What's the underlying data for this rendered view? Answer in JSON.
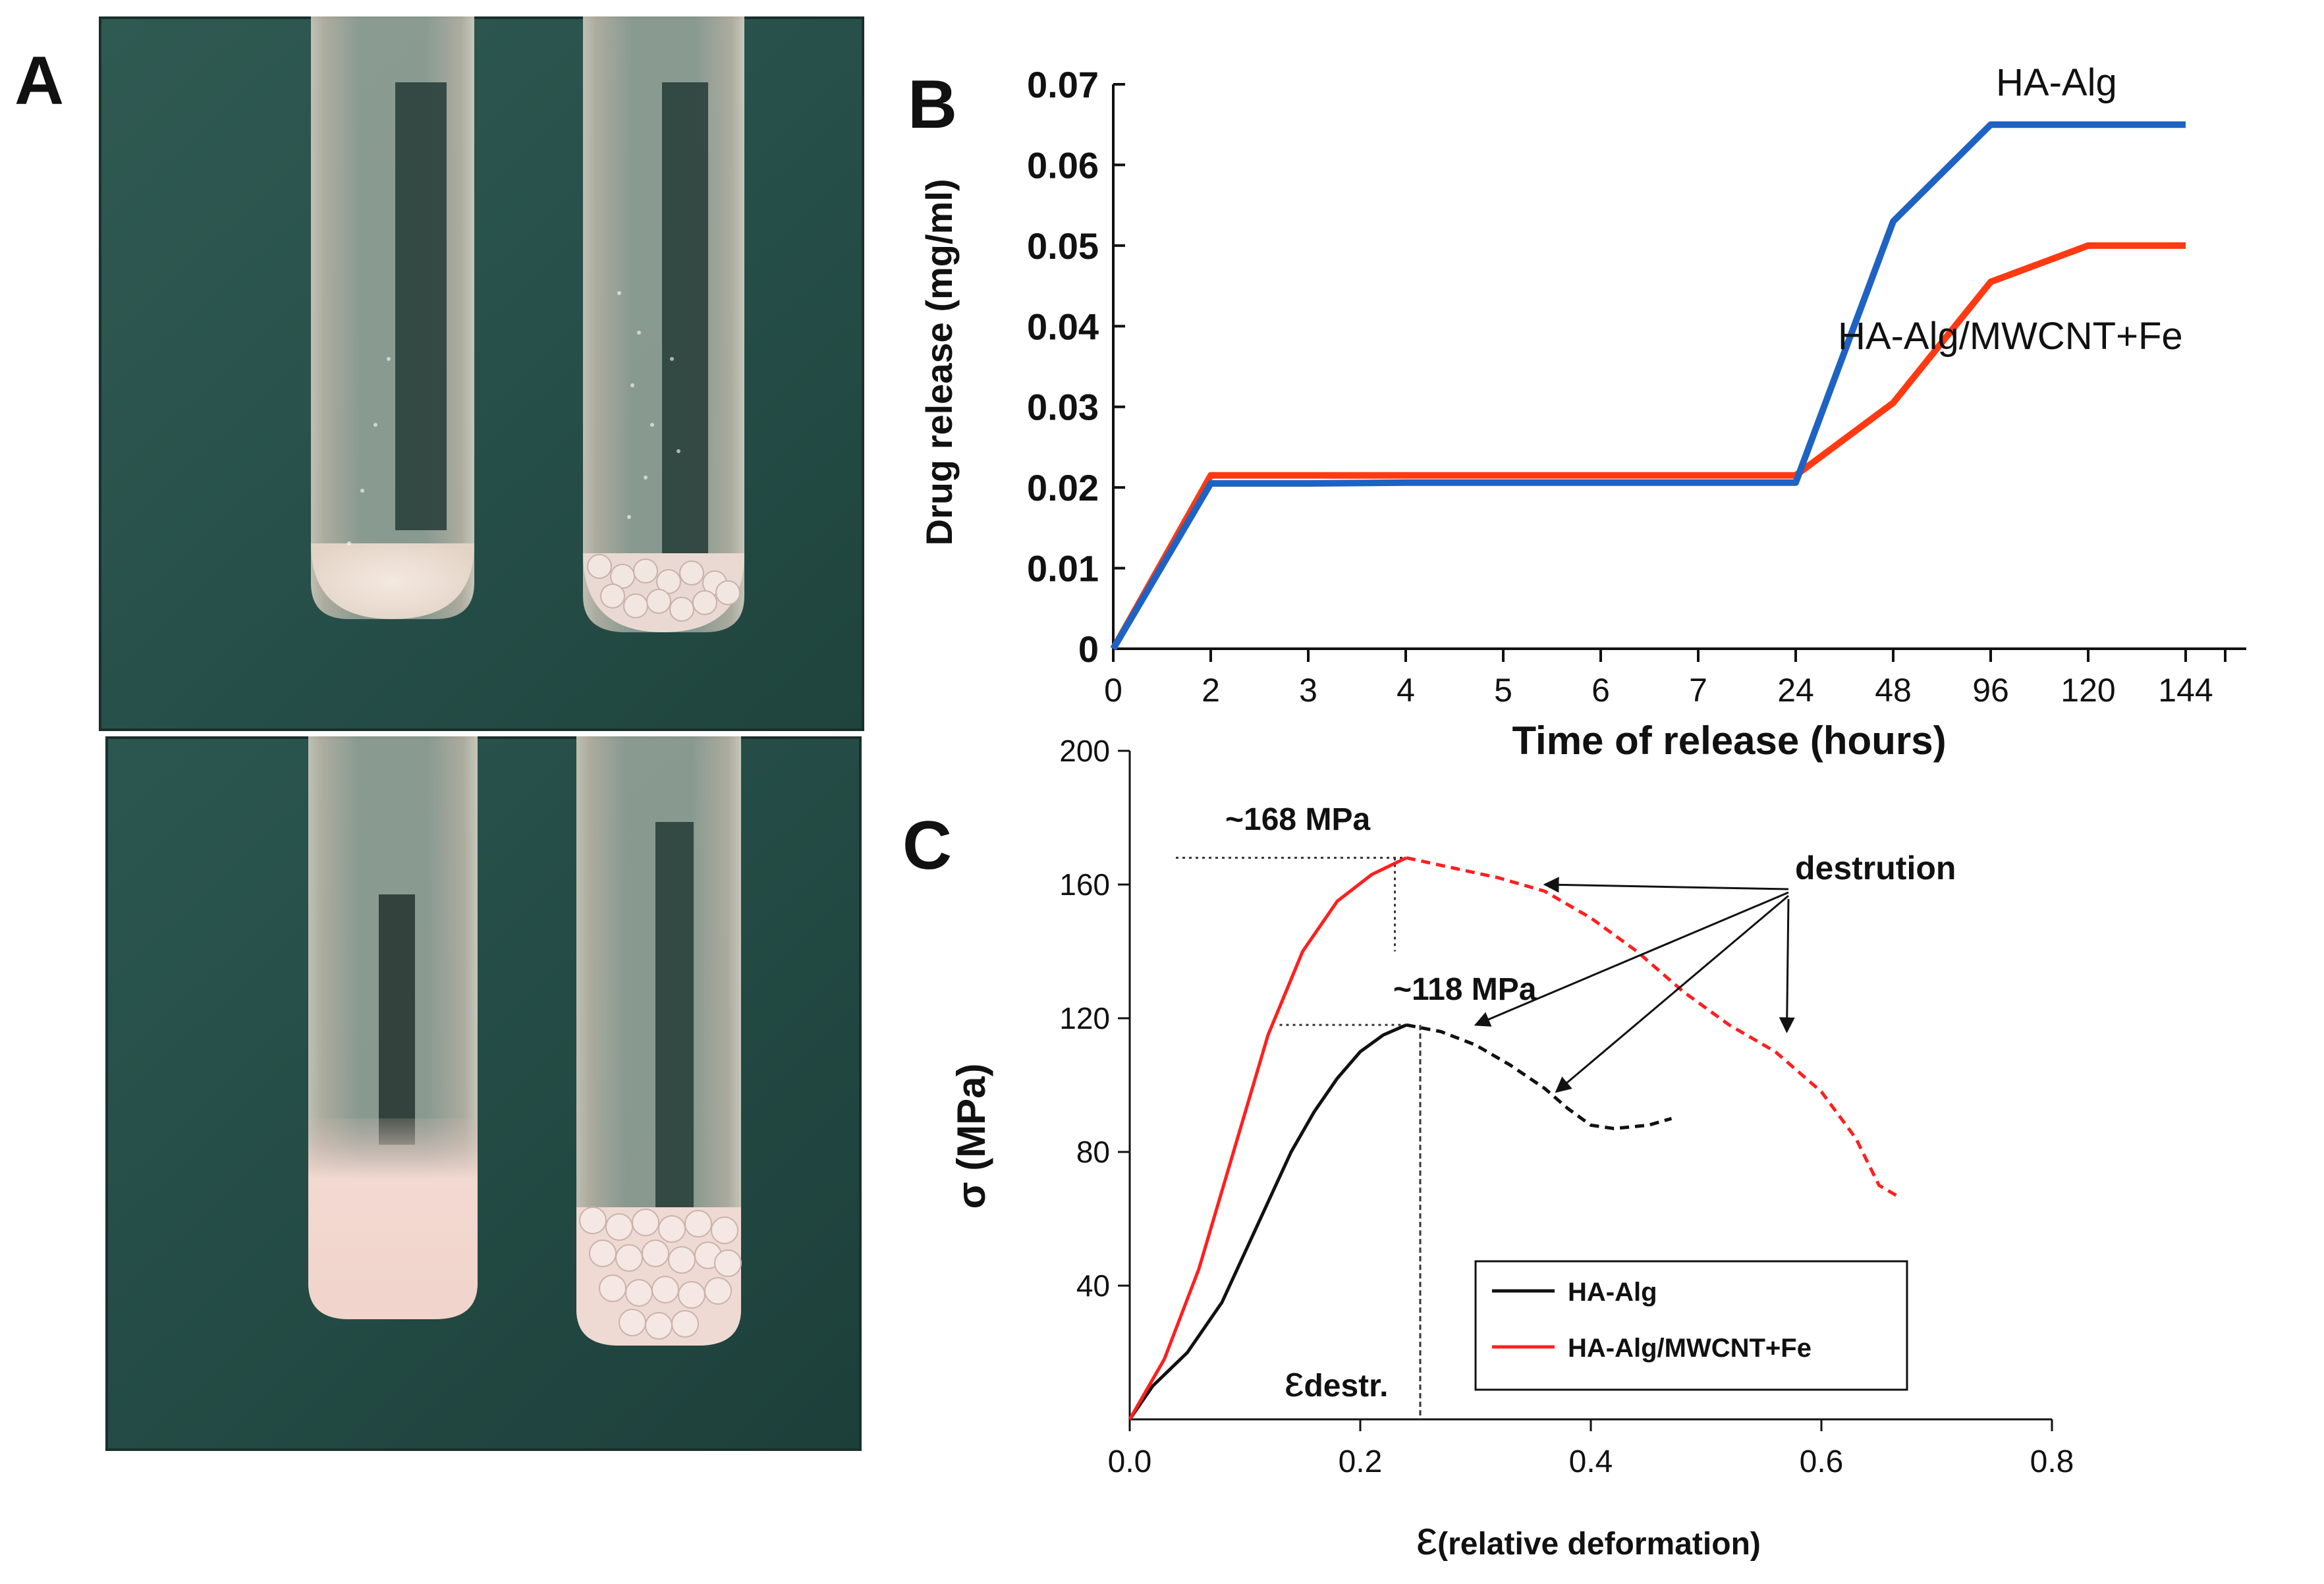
{
  "panels": {
    "a": {
      "letter": "A"
    },
    "b": {
      "letter": "B"
    },
    "c": {
      "letter": "C"
    }
  },
  "chart_data": [
    {
      "type": "line",
      "panel": "B",
      "xlabel": "Time of release (hours)",
      "ylabel": "Drug release (mg/ml)",
      "categories": [
        "0",
        "2",
        "3",
        "4",
        "5",
        "6",
        "7",
        "24",
        "48",
        "96",
        "120",
        "144"
      ],
      "y_ticks": [
        "0",
        "0.01",
        "0.02",
        "0.03",
        "0.04",
        "0.05",
        "0.06",
        "0.07"
      ],
      "ylim": [
        0,
        0.07
      ],
      "series": [
        {
          "name": "HA-Alg",
          "color": "#1e63c4",
          "values": [
            0,
            0.0205,
            0.0205,
            0.0206,
            0.0206,
            0.0206,
            0.0206,
            0.0206,
            0.053,
            0.065,
            0.065,
            0.065
          ]
        },
        {
          "name": "HA-Alg/MWCNT+Fe",
          "color": "#ff3a12",
          "values": [
            0,
            0.0215,
            0.0215,
            0.0215,
            0.0215,
            0.0215,
            0.0215,
            0.0215,
            0.0305,
            0.0455,
            0.05,
            0.05
          ]
        }
      ]
    },
    {
      "type": "line",
      "panel": "C",
      "xlabel_symbol": "ε",
      "xlabel_text": "(relative deformation)",
      "ylabel": "σ  (MPa)",
      "xlim": [
        0,
        0.8
      ],
      "ylim": [
        0,
        200
      ],
      "x_ticks": [
        "0.0",
        "0.2",
        "0.4",
        "0.6",
        "0.8"
      ],
      "y_ticks": [
        "40",
        "80",
        "120",
        "160",
        "200"
      ],
      "legend": {
        "position": "bottom-right",
        "items": [
          "HA-Alg",
          "HA-Alg/MWCNT+Fe"
        ]
      },
      "annotations": {
        "peak_red": "~168 MPa",
        "peak_black": "~118 MPa",
        "destruction": "destrution",
        "eps_symbol": "ε",
        "eps_sub": "destr."
      },
      "series": [
        {
          "name": "HA-Alg",
          "color": "#111111",
          "solid": [
            [
              0,
              0
            ],
            [
              0.02,
              10
            ],
            [
              0.05,
              20
            ],
            [
              0.08,
              35
            ],
            [
              0.1,
              50
            ],
            [
              0.12,
              65
            ],
            [
              0.14,
              80
            ],
            [
              0.16,
              92
            ],
            [
              0.18,
              102
            ],
            [
              0.2,
              110
            ],
            [
              0.22,
              115
            ],
            [
              0.24,
              118
            ]
          ],
          "dashed": [
            [
              0.24,
              118
            ],
            [
              0.27,
              116
            ],
            [
              0.3,
              112
            ],
            [
              0.33,
              106
            ],
            [
              0.36,
              99
            ],
            [
              0.38,
              93
            ],
            [
              0.4,
              88
            ],
            [
              0.42,
              87
            ],
            [
              0.45,
              88
            ],
            [
              0.47,
              90
            ]
          ]
        },
        {
          "name": "HA-Alg/MWCNT+Fe",
          "color": "#ff1f1f",
          "solid": [
            [
              0,
              0
            ],
            [
              0.03,
              18
            ],
            [
              0.06,
              45
            ],
            [
              0.09,
              80
            ],
            [
              0.12,
              115
            ],
            [
              0.15,
              140
            ],
            [
              0.18,
              155
            ],
            [
              0.21,
              163
            ],
            [
              0.24,
              168
            ]
          ],
          "dashed": [
            [
              0.24,
              168
            ],
            [
              0.28,
              165
            ],
            [
              0.32,
              162
            ],
            [
              0.36,
              158
            ],
            [
              0.4,
              150
            ],
            [
              0.44,
              140
            ],
            [
              0.48,
              128
            ],
            [
              0.52,
              118
            ],
            [
              0.56,
              110
            ],
            [
              0.6,
              98
            ],
            [
              0.63,
              84
            ],
            [
              0.65,
              70
            ],
            [
              0.665,
              67
            ]
          ]
        }
      ]
    }
  ]
}
